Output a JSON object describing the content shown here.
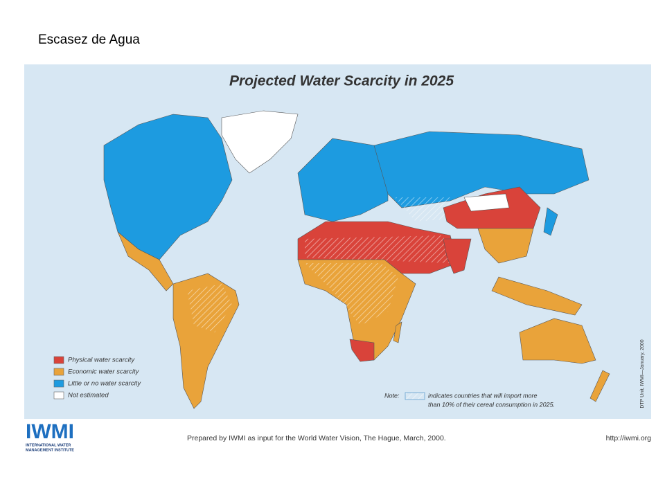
{
  "slide_title": "Escasez de Agua",
  "map": {
    "title": "Projected Water Scarcity in 2025",
    "legend": [
      {
        "label": "Physical water scarcity",
        "color": "#d9433a"
      },
      {
        "label": "Economic water scarcity",
        "color": "#e9a33a"
      },
      {
        "label": "Little or no water scarcity",
        "color": "#1d9be0"
      },
      {
        "label": "Not estimated",
        "color": "#ffffff"
      }
    ],
    "note": {
      "prefix": "Note:",
      "lines": [
        "indicates countries that will import more",
        "than 10% of their cereal consumption in 2025."
      ]
    },
    "credit": "DTP Unit, IWMI—January, 2000"
  },
  "footer": {
    "logo": "IWMI",
    "logo_subtitle": [
      "INTERNATIONAL WATER",
      "MANAGEMENT INSTITUTE"
    ],
    "text": "Prepared by IWMI as input for the World Water Vision, The Hague, March, 2000.",
    "url": "http://iwmi.org"
  }
}
